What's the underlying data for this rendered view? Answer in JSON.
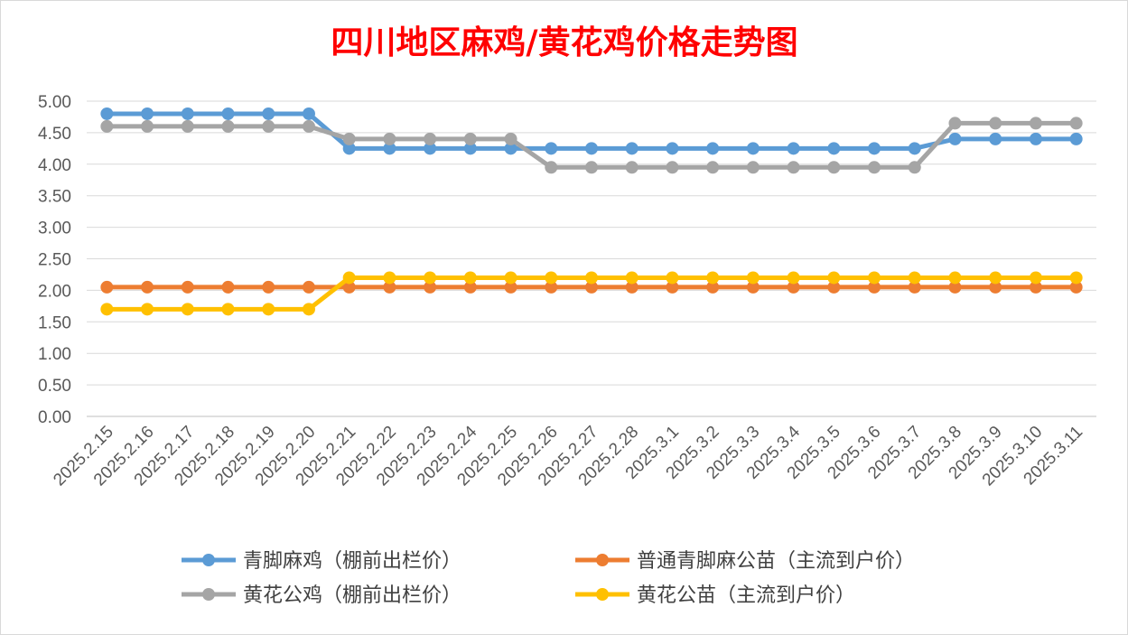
{
  "chart_data": {
    "type": "line",
    "title": "四川地区麻鸡/黄花鸡价格走势图",
    "title_color": "#ff0000",
    "categories": [
      "2025.2.15",
      "2025.2.16",
      "2025.2.17",
      "2025.2.18",
      "2025.2.19",
      "2025.2.20",
      "2025.2.21",
      "2025.2.22",
      "2025.2.23",
      "2025.2.24",
      "2025.2.25",
      "2025.2.26",
      "2025.2.27",
      "2025.2.28",
      "2025.3.1",
      "2025.3.2",
      "2025.3.3",
      "2025.3.4",
      "2025.3.5",
      "2025.3.6",
      "2025.3.7",
      "2025.3.8",
      "2025.3.9",
      "2025.3.10",
      "2025.3.11"
    ],
    "y_ticks": [
      "0.00",
      "0.50",
      "1.00",
      "1.50",
      "2.00",
      "2.50",
      "3.00",
      "3.50",
      "4.00",
      "4.50",
      "5.00"
    ],
    "ylim": [
      0,
      5
    ],
    "grid": true,
    "legend_position": "bottom",
    "xlabel": "",
    "ylabel": "",
    "series": [
      {
        "name": "青脚麻鸡（棚前出栏价）",
        "color": "#5b9bd5",
        "values": [
          4.8,
          4.8,
          4.8,
          4.8,
          4.8,
          4.8,
          4.25,
          4.25,
          4.25,
          4.25,
          4.25,
          4.25,
          4.25,
          4.25,
          4.25,
          4.25,
          4.25,
          4.25,
          4.25,
          4.25,
          4.25,
          4.4,
          4.4,
          4.4,
          4.4
        ]
      },
      {
        "name": "普通青脚麻公苗（主流到户价）",
        "color": "#ed7d31",
        "values": [
          2.05,
          2.05,
          2.05,
          2.05,
          2.05,
          2.05,
          2.05,
          2.05,
          2.05,
          2.05,
          2.05,
          2.05,
          2.05,
          2.05,
          2.05,
          2.05,
          2.05,
          2.05,
          2.05,
          2.05,
          2.05,
          2.05,
          2.05,
          2.05,
          2.05
        ]
      },
      {
        "name": "黄花公鸡（棚前出栏价）",
        "color": "#a5a5a5",
        "values": [
          4.6,
          4.6,
          4.6,
          4.6,
          4.6,
          4.6,
          4.4,
          4.4,
          4.4,
          4.4,
          4.4,
          3.95,
          3.95,
          3.95,
          3.95,
          3.95,
          3.95,
          3.95,
          3.95,
          3.95,
          3.95,
          4.65,
          4.65,
          4.65,
          4.65
        ]
      },
      {
        "name": "黄花公苗（主流到户价）",
        "color": "#ffc000",
        "values": [
          1.7,
          1.7,
          1.7,
          1.7,
          1.7,
          1.7,
          2.2,
          2.2,
          2.2,
          2.2,
          2.2,
          2.2,
          2.2,
          2.2,
          2.2,
          2.2,
          2.2,
          2.2,
          2.2,
          2.2,
          2.2,
          2.2,
          2.2,
          2.2,
          2.2
        ]
      }
    ]
  }
}
